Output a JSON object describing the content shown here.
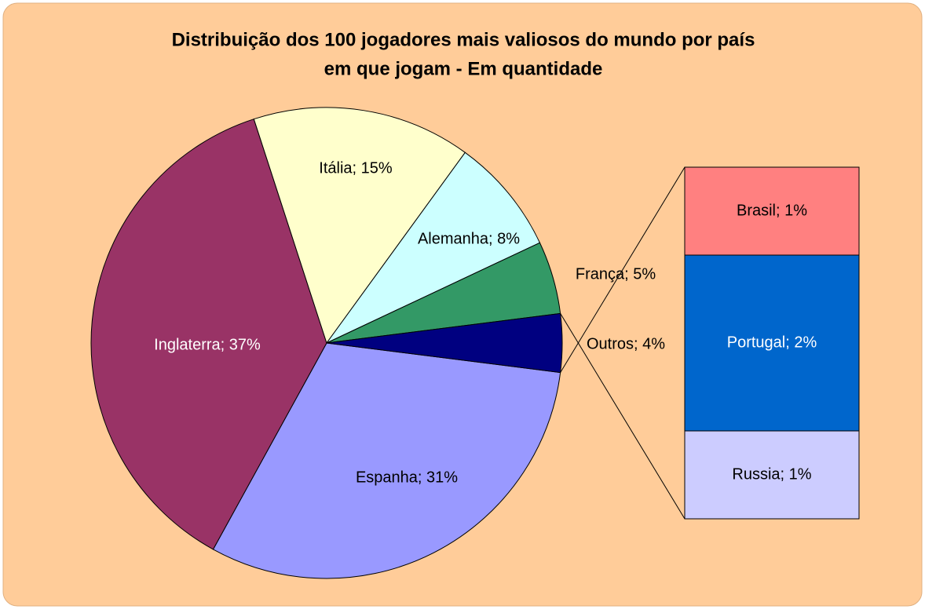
{
  "chart_data": {
    "type": "bar-of-pie",
    "title": [
      "Distribuição dos 100 jogadores mais valiosos do mundo por país",
      "em que jogam - Em quantidade"
    ],
    "values": [
      31,
      37,
      15,
      8,
      5,
      4
    ],
    "value_labels": [
      "Espanha; 31%",
      "Inglaterra; 37%",
      "Itália; 15%",
      "Alemanha; 8%",
      "França; 5%",
      "Outros; 4%"
    ],
    "colors": [
      "#9999ff",
      "#993366",
      "#ffffcc",
      "#ccffff",
      "#339966",
      "#000080"
    ],
    "label_colors": [
      "#000000",
      "#ffffff",
      "#000000",
      "#000000",
      "#000000",
      "#000000"
    ],
    "secondary": {
      "values": [
        1,
        2,
        1
      ],
      "value_labels": [
        "Brasil; 1%",
        "Portugal; 2%",
        "Russia; 1%"
      ],
      "colors": [
        "#ff8080",
        "#0066cc",
        "#ccccff"
      ],
      "label_colors": [
        "#000000",
        "#ffffff",
        "#000000"
      ]
    }
  }
}
